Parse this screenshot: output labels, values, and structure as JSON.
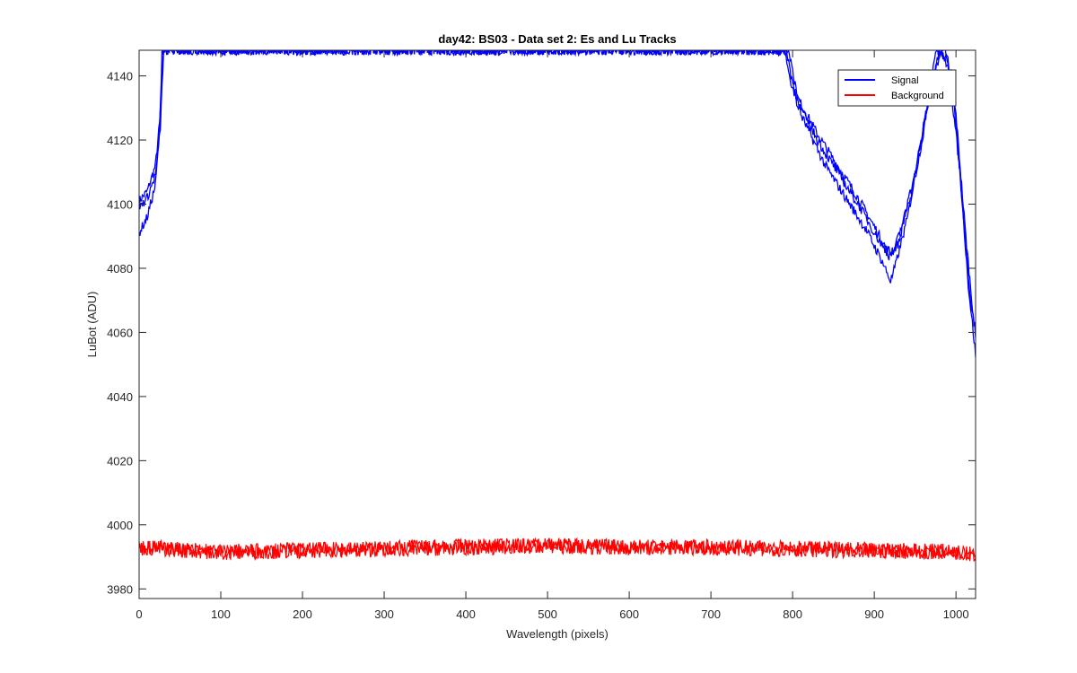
{
  "chart_data": {
    "type": "line",
    "title": "day42: BS03 - Data set 2: Es and Lu Tracks",
    "xlabel": "Wavelength (pixels)",
    "ylabel": "LuBot (ADU)",
    "xlim": [
      0,
      1024
    ],
    "ylim": [
      3977,
      4148
    ],
    "xticks": [
      0,
      100,
      200,
      300,
      400,
      500,
      600,
      700,
      800,
      900,
      1000
    ],
    "yticks": [
      3980,
      4000,
      4020,
      4040,
      4060,
      4080,
      4100,
      4120,
      4140
    ],
    "grid": false,
    "legend_position": "top-right",
    "legend": [
      {
        "label": "Signal",
        "color": "#0000ff"
      },
      {
        "label": "Background",
        "color": "#ff0000"
      }
    ],
    "series": [
      {
        "name": "Signal",
        "color": "#0000ff",
        "points": [
          [
            0,
            4101
          ],
          [
            10,
            4104
          ],
          [
            20,
            4112
          ],
          [
            25,
            4125
          ],
          [
            30,
            4148
          ],
          [
            790,
            4148
          ],
          [
            800,
            4136
          ],
          [
            830,
            4122
          ],
          [
            860,
            4110
          ],
          [
            880,
            4102
          ],
          [
            900,
            4093
          ],
          [
            915,
            4086
          ],
          [
            922,
            4085
          ],
          [
            930,
            4088
          ],
          [
            950,
            4110
          ],
          [
            970,
            4138
          ],
          [
            985,
            4150
          ],
          [
            1000,
            4128
          ],
          [
            1012,
            4090
          ],
          [
            1024,
            4058
          ]
        ]
      },
      {
        "name": "Signal",
        "color": "#0000ff",
        "points": [
          [
            0,
            4091
          ],
          [
            10,
            4096
          ],
          [
            20,
            4106
          ],
          [
            25,
            4122
          ],
          [
            28,
            4148
          ],
          [
            795,
            4148
          ],
          [
            810,
            4128
          ],
          [
            840,
            4112
          ],
          [
            870,
            4100
          ],
          [
            890,
            4092
          ],
          [
            910,
            4082
          ],
          [
            920,
            4076
          ],
          [
            925,
            4080
          ],
          [
            940,
            4095
          ],
          [
            960,
            4122
          ],
          [
            975,
            4148
          ],
          [
            990,
            4145
          ],
          [
            1005,
            4110
          ],
          [
            1015,
            4075
          ],
          [
            1024,
            4053
          ]
        ]
      },
      {
        "name": "Signal",
        "color": "#0000ff",
        "points": [
          [
            0,
            4099
          ],
          [
            10,
            4102
          ],
          [
            20,
            4109
          ],
          [
            26,
            4124
          ],
          [
            30,
            4148
          ],
          [
            792,
            4148
          ],
          [
            805,
            4132
          ],
          [
            835,
            4118
          ],
          [
            865,
            4106
          ],
          [
            885,
            4098
          ],
          [
            905,
            4089
          ],
          [
            918,
            4084
          ],
          [
            925,
            4086
          ],
          [
            945,
            4103
          ],
          [
            965,
            4130
          ],
          [
            980,
            4148
          ],
          [
            995,
            4140
          ],
          [
            1008,
            4100
          ],
          [
            1018,
            4070
          ],
          [
            1024,
            4060
          ]
        ]
      },
      {
        "name": "Background",
        "color": "#ff0000",
        "points": [
          [
            0,
            3993
          ],
          [
            100,
            3991.5
          ],
          [
            200,
            3992
          ],
          [
            300,
            3992.5
          ],
          [
            400,
            3993
          ],
          [
            500,
            3993.5
          ],
          [
            600,
            3993
          ],
          [
            700,
            3993
          ],
          [
            800,
            3992.5
          ],
          [
            900,
            3992
          ],
          [
            1000,
            3991.5
          ],
          [
            1024,
            3991
          ]
        ]
      }
    ]
  }
}
